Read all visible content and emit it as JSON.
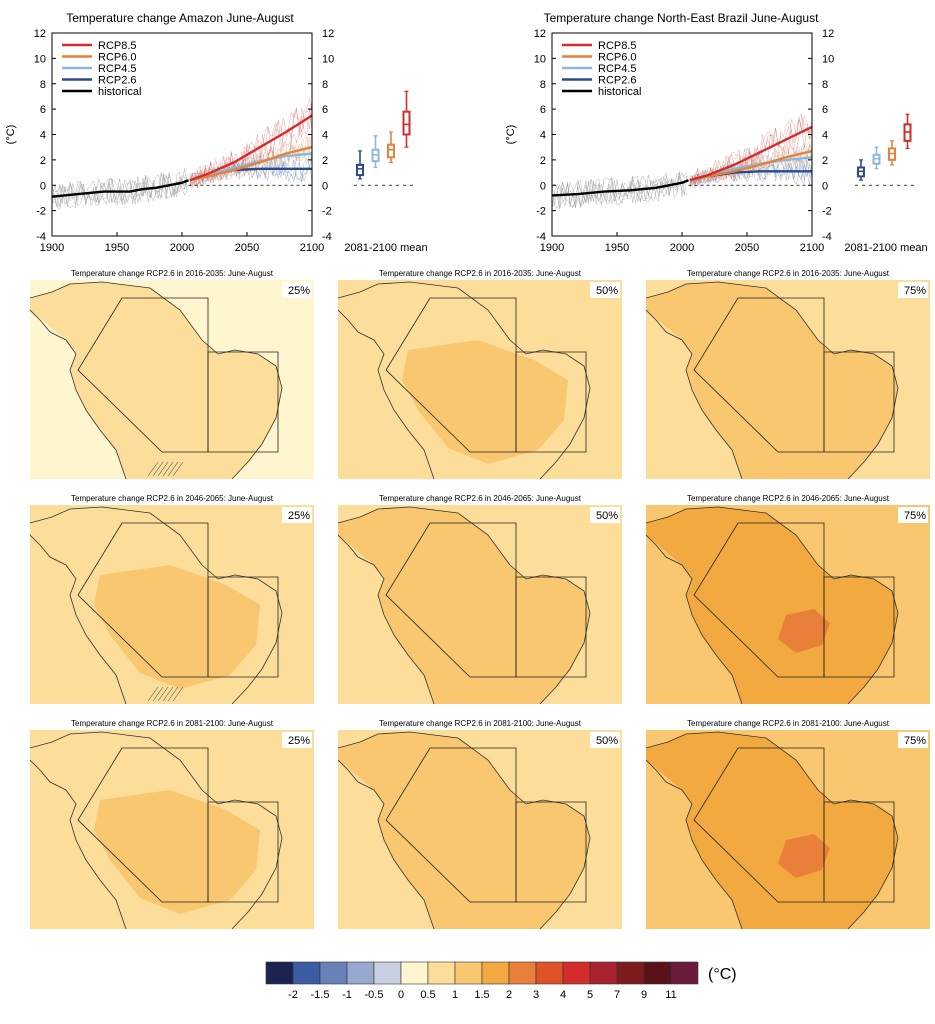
{
  "colors": {
    "rcp85": "#d42b2b",
    "rcp60": "#e8803a",
    "rcp45": "#8db8d9",
    "rcp26": "#2c4a8a",
    "historical": "#000000",
    "map_cool": "#fff5cf",
    "map_l1": "#fcde9a",
    "map_l2": "#f8c770",
    "map_l3": "#f2aa40",
    "map_l4": "#e8803a"
  },
  "chart_data": [
    {
      "type": "line",
      "title": "Temperature change Amazon June-August",
      "ylabel": "(°C)",
      "ylim": [
        -4,
        12
      ],
      "xlim": [
        1900,
        2100
      ],
      "x_ticks": [
        "1900",
        "1950",
        "2000",
        "2050",
        "2100"
      ],
      "y_ticks": [
        "-4",
        "-2",
        "0",
        "2",
        "4",
        "6",
        "8",
        "10",
        "12"
      ],
      "mean_label": "2081-2100 mean",
      "series": [
        {
          "name": "RCP8.5",
          "x": [
            2006,
            2020,
            2040,
            2060,
            2080,
            2100
          ],
          "values": [
            0.4,
            0.9,
            1.8,
            3.0,
            4.2,
            5.5
          ]
        },
        {
          "name": "RCP6.0",
          "x": [
            2006,
            2020,
            2040,
            2060,
            2080,
            2100
          ],
          "values": [
            0.4,
            0.7,
            1.2,
            1.8,
            2.5,
            3.0
          ]
        },
        {
          "name": "RCP4.5",
          "x": [
            2006,
            2020,
            2040,
            2060,
            2080,
            2100
          ],
          "values": [
            0.4,
            0.8,
            1.4,
            1.9,
            2.3,
            2.5
          ]
        },
        {
          "name": "RCP2.6",
          "x": [
            2006,
            2020,
            2040,
            2060,
            2080,
            2100
          ],
          "values": [
            0.4,
            0.8,
            1.2,
            1.3,
            1.3,
            1.3
          ]
        },
        {
          "name": "historical",
          "x": [
            1900,
            1920,
            1940,
            1960,
            1970,
            1980,
            1990,
            2000,
            2005
          ],
          "values": [
            -0.9,
            -0.7,
            -0.5,
            -0.5,
            -0.3,
            -0.2,
            0.0,
            0.2,
            0.4
          ]
        }
      ],
      "boxes": [
        {
          "name": "RCP2.6",
          "whisker_low": 0.5,
          "q1": 0.8,
          "median": 1.3,
          "q3": 1.6,
          "whisker_high": 2.7
        },
        {
          "name": "RCP4.5",
          "whisker_low": 1.4,
          "q1": 1.9,
          "median": 2.4,
          "q3": 2.8,
          "whisker_high": 3.9
        },
        {
          "name": "RCP6.0",
          "whisker_low": 1.8,
          "q1": 2.2,
          "median": 2.8,
          "q3": 3.2,
          "whisker_high": 4.2
        },
        {
          "name": "RCP8.5",
          "whisker_low": 3.0,
          "q1": 4.0,
          "median": 4.8,
          "q3": 5.8,
          "whisker_high": 7.4
        }
      ]
    },
    {
      "type": "line",
      "title": "Temperature change North-East Brazil June-August",
      "ylabel": "(°C)",
      "ylim": [
        -4,
        12
      ],
      "xlim": [
        1900,
        2100
      ],
      "x_ticks": [
        "1900",
        "1950",
        "2000",
        "2050",
        "2100"
      ],
      "y_ticks": [
        "-4",
        "-2",
        "0",
        "2",
        "4",
        "6",
        "8",
        "10",
        "12"
      ],
      "mean_label": "2081-2100 mean",
      "series": [
        {
          "name": "RCP8.5",
          "x": [
            2006,
            2020,
            2040,
            2060,
            2080,
            2100
          ],
          "values": [
            0.4,
            0.8,
            1.6,
            2.6,
            3.6,
            4.6
          ]
        },
        {
          "name": "RCP6.0",
          "x": [
            2006,
            2020,
            2040,
            2060,
            2080,
            2100
          ],
          "values": [
            0.4,
            0.7,
            1.1,
            1.6,
            2.2,
            2.7
          ]
        },
        {
          "name": "RCP4.5",
          "x": [
            2006,
            2020,
            2040,
            2060,
            2080,
            2100
          ],
          "values": [
            0.4,
            0.7,
            1.3,
            1.7,
            2.0,
            2.2
          ]
        },
        {
          "name": "RCP2.6",
          "x": [
            2006,
            2020,
            2040,
            2060,
            2080,
            2100
          ],
          "values": [
            0.4,
            0.7,
            1.0,
            1.1,
            1.1,
            1.1
          ]
        },
        {
          "name": "historical",
          "x": [
            1900,
            1920,
            1940,
            1960,
            1970,
            1980,
            1990,
            2000,
            2005
          ],
          "values": [
            -0.8,
            -0.7,
            -0.5,
            -0.4,
            -0.3,
            -0.2,
            0.0,
            0.2,
            0.4
          ]
        }
      ],
      "boxes": [
        {
          "name": "RCP2.6",
          "whisker_low": 0.4,
          "q1": 0.7,
          "median": 1.1,
          "q3": 1.4,
          "whisker_high": 2.0
        },
        {
          "name": "RCP4.5",
          "whisker_low": 1.3,
          "q1": 1.7,
          "median": 2.1,
          "q3": 2.4,
          "whisker_high": 3.0
        },
        {
          "name": "RCP6.0",
          "whisker_low": 1.6,
          "q1": 2.0,
          "median": 2.5,
          "q3": 2.9,
          "whisker_high": 3.5
        },
        {
          "name": "RCP8.5",
          "whisker_low": 2.9,
          "q1": 3.5,
          "median": 4.2,
          "q3": 4.8,
          "whisker_high": 5.6
        }
      ]
    },
    {
      "type": "heatmap",
      "colorbar": {
        "unit": "(°C)",
        "tick_labels": [
          "-2",
          "-1.5",
          "-1",
          "-0.5",
          "0",
          "0.5",
          "1",
          "1.5",
          "2",
          "3",
          "4",
          "5",
          "7",
          "9",
          "11"
        ],
        "colors": [
          "#1b2352",
          "#3c5ca4",
          "#6a80b8",
          "#97a9cf",
          "#c8d0e2",
          "#fff5cf",
          "#fcde9a",
          "#f8c770",
          "#f2aa40",
          "#e8803a",
          "#e0532a",
          "#d42b2b",
          "#a8222f",
          "#7e1b1f",
          "#5a1218",
          "#6a1a3c"
        ]
      },
      "maps": [
        {
          "title": "Temperature change RCP2.6 in 2016-2035: June-August",
          "pct": "25%"
        },
        {
          "title": "Temperature change RCP2.6 in 2016-2035: June-August",
          "pct": "50%"
        },
        {
          "title": "Temperature change RCP2.6 in 2016-2035: June-August",
          "pct": "75%"
        },
        {
          "title": "Temperature change RCP2.6 in 2046-2065: June-August",
          "pct": "25%"
        },
        {
          "title": "Temperature change RCP2.6 in 2046-2065: June-August",
          "pct": "50%"
        },
        {
          "title": "Temperature change RCP2.6 in 2046-2065: June-August",
          "pct": "75%"
        },
        {
          "title": "Temperature change RCP2.6 in 2081-2100: June-August",
          "pct": "25%"
        },
        {
          "title": "Temperature change RCP2.6 in 2081-2100: June-August",
          "pct": "50%"
        },
        {
          "title": "Temperature change RCP2.6 in 2081-2100: June-August",
          "pct": "75%"
        }
      ]
    }
  ]
}
